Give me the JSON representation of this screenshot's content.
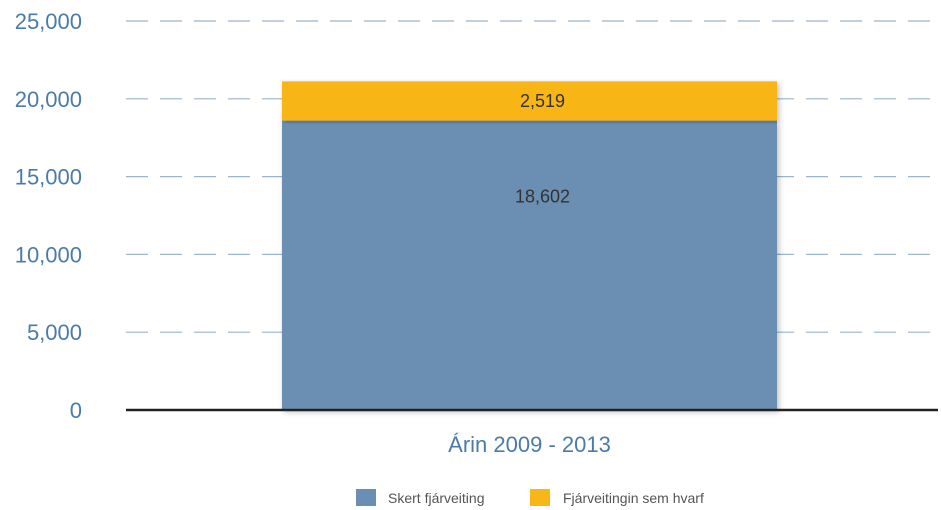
{
  "chart_data": {
    "type": "bar",
    "stacked": true,
    "categories": [
      "Árin 2009 - 2013"
    ],
    "series": [
      {
        "name": "Skert fjárveiting",
        "values": [
          18602
        ],
        "label": "18,602",
        "color": "#6b8fb3"
      },
      {
        "name": "Fjárveitingin sem hvarf",
        "values": [
          2519
        ],
        "label": "2,519",
        "color": "#f8b617"
      }
    ],
    "ylim": [
      0,
      25000
    ],
    "yticks": [
      {
        "value": 0,
        "label": "0"
      },
      {
        "value": 5000,
        "label": "5,000"
      },
      {
        "value": 10000,
        "label": "10,000"
      },
      {
        "value": 15000,
        "label": "15,000"
      },
      {
        "value": 20000,
        "label": "20,000"
      },
      {
        "value": 25000,
        "label": "25,000"
      }
    ],
    "grid": true,
    "grid_style": "dashed",
    "legend_position": "bottom",
    "title": "",
    "xlabel": "",
    "ylabel": "",
    "colors": {
      "tick_text": "#4a7bab",
      "grid": "#9bb4cf",
      "baseline": "#222222"
    }
  }
}
